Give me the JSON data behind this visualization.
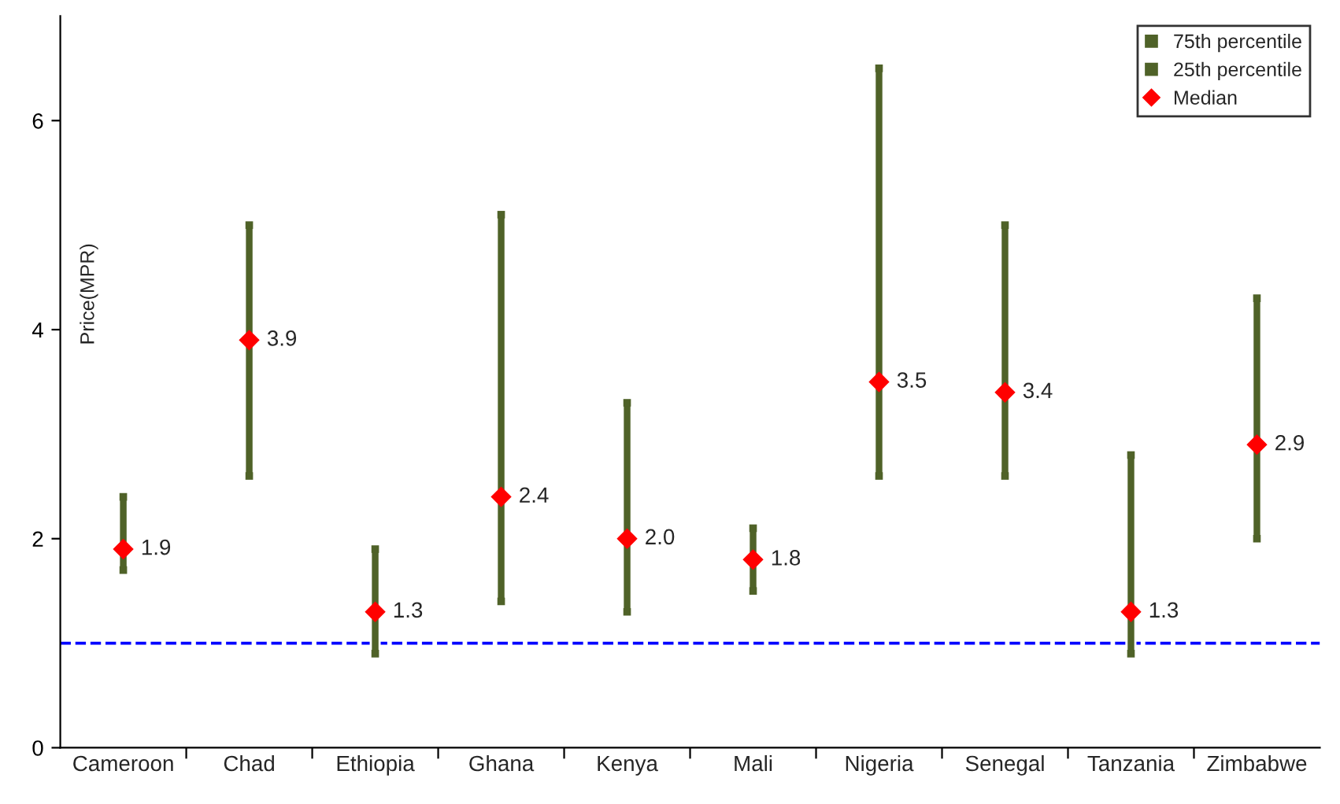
{
  "chart_data": {
    "type": "bar",
    "ylabel": "Price(MPR)",
    "categories": [
      "Cameroon",
      "Chad",
      "Ethiopia",
      "Ghana",
      "Kenya",
      "Mali",
      "Nigeria",
      "Senegal",
      "Tanzania",
      "Zimbabwe"
    ],
    "series": [
      {
        "color": "#4f6228",
        "base": [
          1.7,
          2.6,
          0.9,
          1.4,
          1.3,
          1.5,
          2.6,
          2.6,
          0.9,
          2.0
        ],
        "values": [
          0.7,
          2.4,
          1.0,
          3.7,
          2.0,
          0.6,
          3.9,
          2.4,
          1.9,
          2.3
        ]
      },
      {
        "name": "75th percentile",
        "type": "scatter",
        "marker": "square",
        "color": "#4f6228",
        "values": [
          2.4,
          5.0,
          1.9,
          5.1,
          3.3,
          2.1,
          6.5,
          5.0,
          2.8,
          4.3
        ]
      },
      {
        "name": "25th percentile",
        "type": "scatter",
        "marker": "square",
        "color": "#4f6228",
        "values": [
          1.7,
          2.6,
          0.9,
          1.4,
          1.3,
          1.5,
          2.6,
          2.6,
          0.9,
          2.0
        ]
      },
      {
        "name": "Median",
        "type": "scatter",
        "marker": "diamond",
        "color": "#ff0000",
        "values": [
          1.9,
          3.9,
          1.3,
          2.4,
          2.0,
          1.8,
          3.5,
          3.4,
          1.3,
          2.9
        ],
        "value_labels": [
          "1.9",
          "3.9",
          "1.3",
          "2.4",
          "2.0",
          "1.8",
          "3.5",
          "3.4",
          "1.3",
          "2.9"
        ]
      }
    ],
    "ylim": [
      0,
      7
    ],
    "yticks": [
      0,
      2,
      4,
      6
    ],
    "ref_lines": [
      {
        "axis": "y",
        "value": 1.0,
        "color": "#0000ff",
        "line_style": "dashed"
      }
    ],
    "grid": false,
    "legend": "top right"
  }
}
